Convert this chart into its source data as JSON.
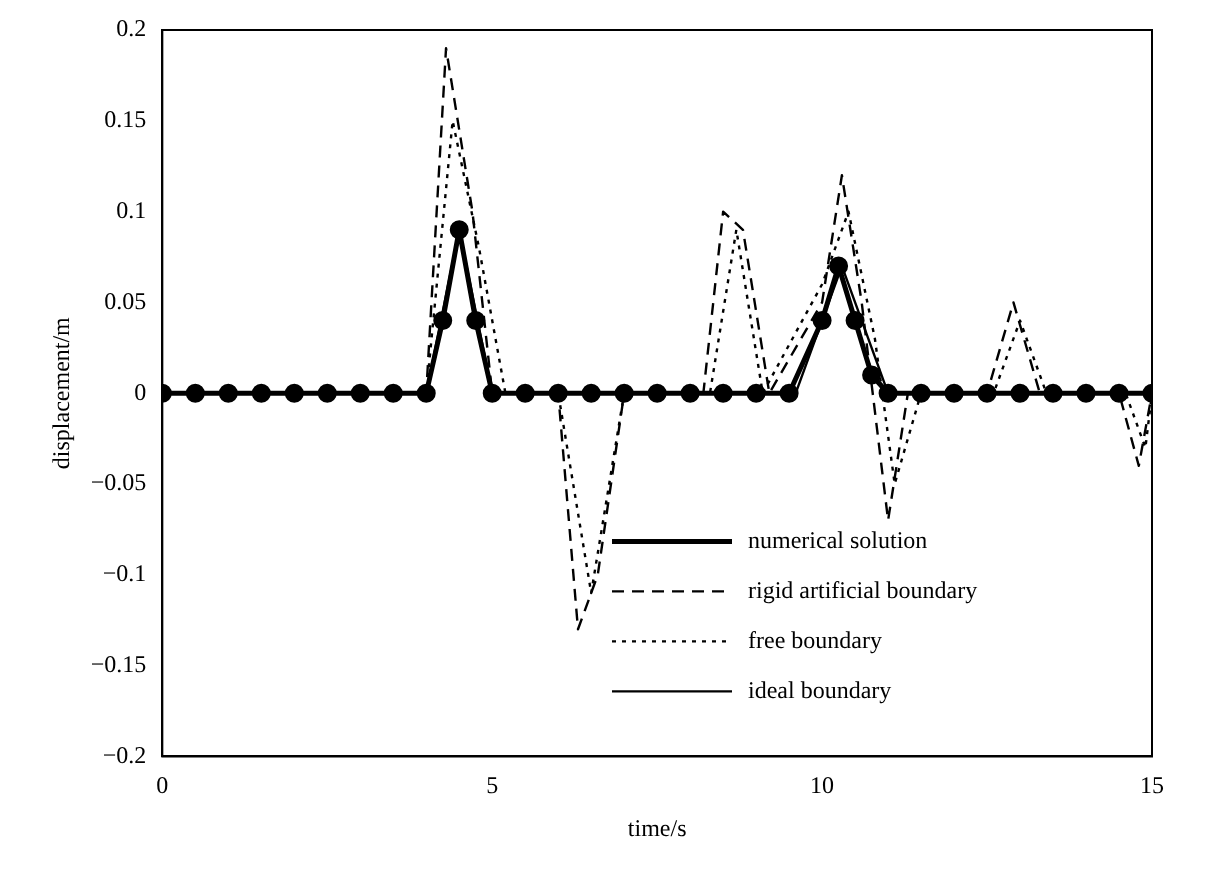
{
  "chart_data": {
    "type": "line",
    "xlabel": "time/s",
    "ylabel": "displacement/m",
    "xlim": [
      0,
      15
    ],
    "xticks": [
      0,
      5,
      10,
      15
    ],
    "ylim": [
      -0.2,
      0.2
    ],
    "yticks": [
      -0.2,
      -0.15,
      -0.1,
      -0.05,
      0,
      0.05,
      0.1,
      0.15,
      0.2
    ],
    "grid": false,
    "legend": "bottom right",
    "series": [
      {
        "name": "numerical solution",
        "color": "#000000",
        "marker": "circle",
        "line_style": "solid",
        "x": [
          0,
          0.5,
          1,
          1.5,
          2,
          2.5,
          3,
          3.5,
          4,
          4.25,
          4.5,
          4.75,
          5,
          5.5,
          6,
          6.5,
          7,
          7.5,
          8,
          8.5,
          9,
          9.5,
          10,
          10.25,
          10.5,
          10.75,
          11,
          11.5,
          12,
          12.5,
          13,
          13.5,
          14,
          14.5,
          15
        ],
        "values": [
          0,
          0,
          0,
          0,
          0,
          0,
          0,
          0,
          0,
          0.04,
          0.09,
          0.04,
          0,
          0,
          0,
          0,
          0,
          0,
          0,
          0,
          0,
          0,
          0.04,
          0.07,
          0.04,
          0.01,
          0,
          0,
          0,
          0,
          0,
          0,
          0,
          0,
          0
        ]
      },
      {
        "name": "rigid artificial boundary",
        "color": "#000000",
        "marker": "none",
        "line_style": "dashed",
        "x": [
          0,
          4,
          4.3,
          4.7,
          5,
          6,
          6.3,
          6.6,
          7,
          8.2,
          8.5,
          8.8,
          9.2,
          10,
          10.3,
          10.6,
          11,
          11.3,
          12.5,
          12.9,
          13.3,
          14.5,
          14.8,
          15
        ],
        "values": [
          0,
          0,
          0.19,
          0.1,
          0,
          0,
          -0.13,
          -0.1,
          0,
          0,
          0.1,
          0.09,
          0,
          0.05,
          0.12,
          0.05,
          -0.07,
          0,
          0,
          0.05,
          0,
          0,
          -0.04,
          0
        ]
      },
      {
        "name": "free boundary",
        "color": "#000000",
        "marker": "none",
        "line_style": "dotted",
        "x": [
          0,
          4,
          4.4,
          4.8,
          5.2,
          6,
          6.5,
          7,
          8.3,
          8.7,
          9.1,
          10,
          10.4,
          10.8,
          11.1,
          11.5,
          12.6,
          13,
          13.4,
          14.6,
          14.9,
          15
        ],
        "values": [
          0,
          0,
          0.15,
          0.08,
          0,
          0,
          -0.11,
          0,
          0,
          0.09,
          0,
          0.06,
          0.1,
          0.03,
          -0.05,
          0,
          0,
          0.04,
          0,
          0,
          -0.03,
          0
        ]
      },
      {
        "name": "ideal boundary",
        "color": "#000000",
        "marker": "none",
        "line_style": "solid",
        "x": [
          0,
          4,
          4.5,
          5,
          9.6,
          10.3,
          11,
          15
        ],
        "values": [
          0,
          0,
          0.09,
          0,
          0,
          0.07,
          0,
          0
        ]
      }
    ]
  }
}
